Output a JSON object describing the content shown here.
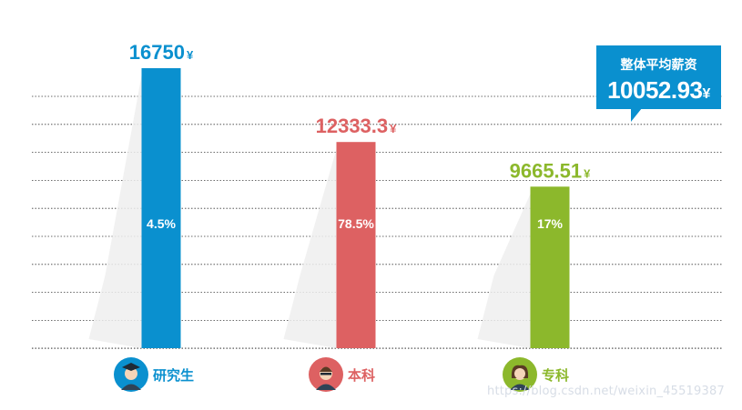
{
  "chart_data": {
    "type": "bar",
    "categories": [
      "研究生",
      "本科",
      "专科"
    ],
    "values": [
      16750,
      12333.3,
      9665.51
    ],
    "value_labels": [
      "16750",
      "12333.3",
      "9665.51"
    ],
    "share_labels": [
      "4.5%",
      "78.5%",
      "17%"
    ],
    "currency": "¥",
    "colors": [
      "#0a90cf",
      "#dd6162",
      "#8cb82c"
    ],
    "grid": true,
    "ylim": [
      0,
      17500
    ],
    "icons": [
      "graduate-avatar-icon",
      "bachelor-avatar-icon",
      "associate-avatar-icon"
    ]
  },
  "callout": {
    "title": "整体平均薪资",
    "value": "10052.93",
    "currency": "¥"
  },
  "watermark": "https://blog.csdn.net/weixin_45519387"
}
